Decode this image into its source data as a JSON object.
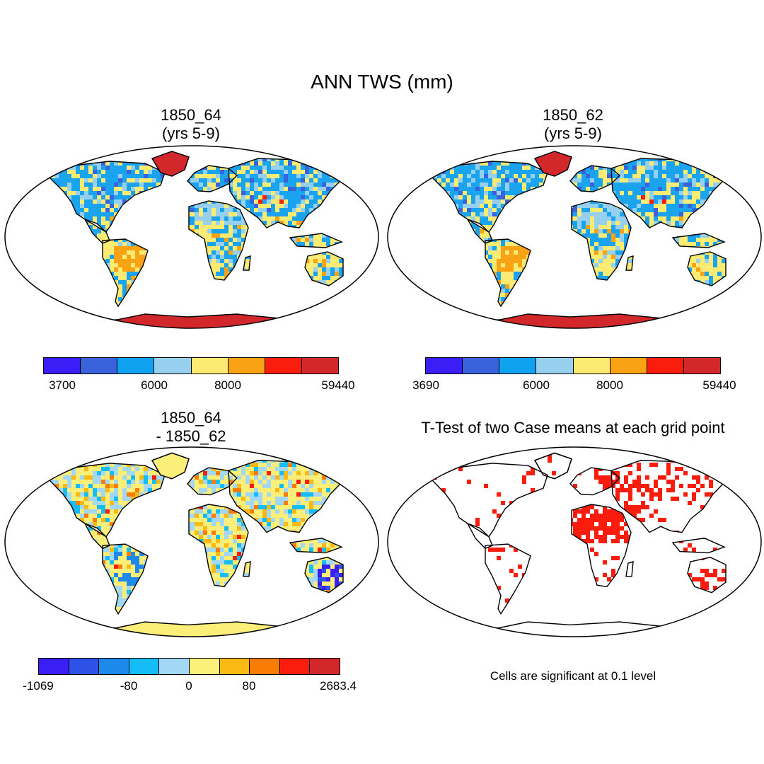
{
  "title": "ANN TWS (mm)",
  "panels": [
    {
      "line1": "1850_64",
      "line2": "(yrs 5-9)"
    },
    {
      "line1": "1850_62",
      "line2": "(yrs 5-9)"
    },
    {
      "line1": "1850_64",
      "line2": "- 1850_62"
    },
    {
      "line1": "T-Test of two Case means at each grid point"
    }
  ],
  "note": "Cells are significant at 0.1 level",
  "colorbars": {
    "cb1": {
      "colors": [
        "#3a1ef5",
        "#3a62dc",
        "#0fa2f0",
        "#96d0ee",
        "#fbeb72",
        "#f9a214",
        "#fa1c0c",
        "#d2282c"
      ],
      "labels": [
        "3700",
        "6000",
        "8000",
        "59440"
      ]
    },
    "cb2": {
      "colors": [
        "#3a1ef5",
        "#3a62dc",
        "#0fa2f0",
        "#96d0ee",
        "#fbeb72",
        "#f9a214",
        "#fa1c0c",
        "#d2282c"
      ],
      "labels": [
        "3690",
        "6000",
        "8000",
        "59440"
      ]
    },
    "cb3": {
      "colors": [
        "#3a1ef5",
        "#2e52e6",
        "#1d89ea",
        "#14bdf7",
        "#a2d8f5",
        "#fbf17a",
        "#fbb914",
        "#fb7c04",
        "#fa1c0c",
        "#d2282c"
      ],
      "labels": [
        "-1069",
        "-80",
        "0",
        "80",
        "2683.4"
      ]
    }
  }
}
